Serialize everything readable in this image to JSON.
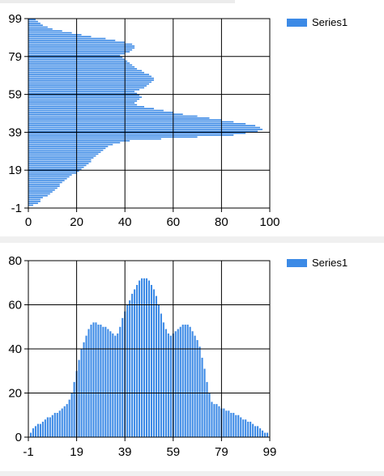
{
  "colors": {
    "series": "#3c8ae6",
    "grid": "#000000"
  },
  "chart_data": [
    {
      "type": "bar",
      "orientation": "horizontal",
      "title": "",
      "legend": {
        "entries": [
          "Series1"
        ],
        "position": "top-right"
      },
      "grid": true,
      "xlim": [
        0,
        100
      ],
      "ylim": [
        -1,
        99
      ],
      "x_ticks": [
        "0",
        "20",
        "40",
        "60",
        "80",
        "100"
      ],
      "y_ticks": [
        "-1",
        "19",
        "39",
        "59",
        "79",
        "99"
      ],
      "categories": [
        0,
        1,
        2,
        3,
        4,
        5,
        6,
        7,
        8,
        9,
        10,
        11,
        12,
        13,
        14,
        15,
        16,
        17,
        18,
        19,
        20,
        21,
        22,
        23,
        24,
        25,
        26,
        27,
        28,
        29,
        30,
        31,
        32,
        33,
        34,
        35,
        36,
        37,
        38,
        39,
        40,
        41,
        42,
        43,
        44,
        45,
        46,
        47,
        48,
        49,
        50,
        51,
        52,
        53,
        54,
        55,
        56,
        57,
        58,
        59,
        60,
        61,
        62,
        63,
        64,
        65,
        66,
        67,
        68,
        69,
        70,
        71,
        72,
        73,
        74,
        75,
        76,
        77,
        78,
        79,
        80,
        81,
        82,
        83,
        84,
        85,
        86,
        87,
        88,
        89,
        90,
        91,
        92,
        93,
        94,
        95,
        96,
        97,
        98
      ],
      "series": [
        {
          "name": "Series1",
          "values": [
            2,
            4,
            5,
            5,
            6,
            8,
            9,
            10,
            11,
            12,
            13,
            13,
            14,
            15,
            16,
            17,
            18,
            20,
            21,
            22,
            23,
            24,
            25,
            26,
            26,
            27,
            28,
            29,
            30,
            31,
            32,
            33,
            35,
            38,
            42,
            55,
            70,
            85,
            90,
            95,
            97,
            96,
            94,
            90,
            85,
            80,
            75,
            70,
            64,
            60,
            56,
            52,
            48,
            45,
            44,
            45,
            46,
            47,
            46,
            45,
            44,
            46,
            48,
            49,
            50,
            51,
            52,
            52,
            51,
            50,
            48,
            47,
            45,
            44,
            43,
            42,
            41,
            40,
            39,
            38,
            40,
            42,
            43,
            44,
            44,
            43,
            40,
            36,
            32,
            26,
            22,
            18,
            14,
            10,
            8,
            6,
            5,
            4,
            3
          ]
        }
      ]
    },
    {
      "type": "bar",
      "title": "",
      "legend": {
        "entries": [
          "Series1"
        ],
        "position": "top-right"
      },
      "grid": true,
      "xlim": [
        -1,
        99
      ],
      "ylim": [
        0,
        80
      ],
      "x_ticks": [
        "-1",
        "19",
        "39",
        "59",
        "79",
        "99"
      ],
      "y_ticks": [
        "0",
        "20",
        "40",
        "60",
        "80"
      ],
      "categories": [
        0,
        1,
        2,
        3,
        4,
        5,
        6,
        7,
        8,
        9,
        10,
        11,
        12,
        13,
        14,
        15,
        16,
        17,
        18,
        19,
        20,
        21,
        22,
        23,
        24,
        25,
        26,
        27,
        28,
        29,
        30,
        31,
        32,
        33,
        34,
        35,
        36,
        37,
        38,
        39,
        40,
        41,
        42,
        43,
        44,
        45,
        46,
        47,
        48,
        49,
        50,
        51,
        52,
        53,
        54,
        55,
        56,
        57,
        58,
        59,
        60,
        61,
        62,
        63,
        64,
        65,
        66,
        67,
        68,
        69,
        70,
        71,
        72,
        73,
        74,
        75,
        76,
        77,
        78,
        79,
        80,
        81,
        82,
        83,
        84,
        85,
        86,
        87,
        88,
        89,
        90,
        91,
        92,
        93,
        94,
        95,
        96,
        97,
        98
      ],
      "series": [
        {
          "name": "Series1",
          "values": [
            2,
            4,
            5,
            6,
            6,
            7,
            8,
            9,
            9,
            10,
            11,
            11,
            12,
            13,
            14,
            15,
            17,
            20,
            25,
            30,
            35,
            40,
            43,
            46,
            49,
            51,
            52,
            52,
            51,
            51,
            50,
            50,
            49,
            48,
            47,
            46,
            47,
            50,
            54,
            57,
            60,
            62,
            65,
            67,
            69,
            71,
            72,
            72,
            72,
            71,
            69,
            67,
            64,
            60,
            56,
            52,
            49,
            47,
            46,
            47,
            48,
            49,
            50,
            51,
            51,
            51,
            50,
            48,
            46,
            44,
            41,
            36,
            31,
            25,
            20,
            16,
            15,
            15,
            14,
            13,
            13,
            12,
            12,
            11,
            11,
            10,
            10,
            9,
            8,
            8,
            7,
            7,
            6,
            5,
            5,
            4,
            3,
            2,
            2
          ]
        }
      ]
    }
  ]
}
